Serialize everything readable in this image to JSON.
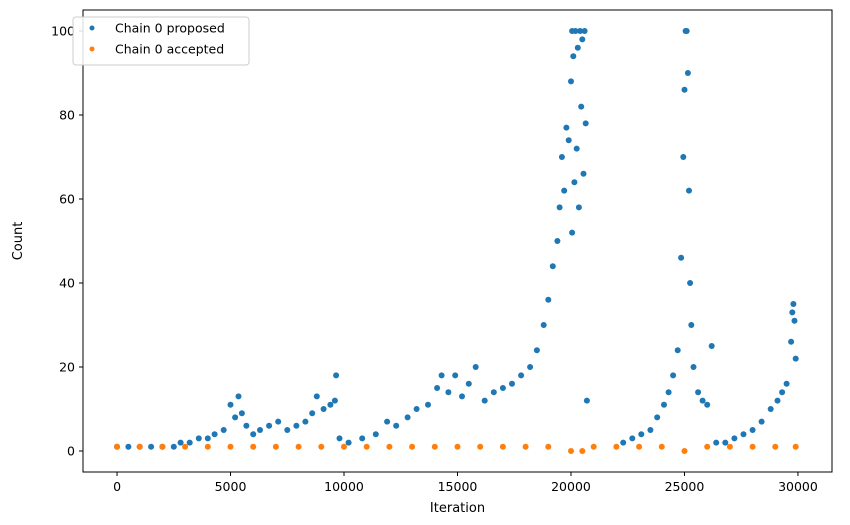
{
  "chart_data": {
    "type": "scatter",
    "xlabel": "Iteration",
    "ylabel": "Count",
    "xlim": [
      -1500,
      31500
    ],
    "ylim": [
      -5,
      105
    ],
    "xticks": [
      0,
      5000,
      10000,
      15000,
      20000,
      25000,
      30000
    ],
    "yticks": [
      0,
      20,
      40,
      60,
      80,
      100
    ],
    "grid": false,
    "legend": "top-left",
    "series": [
      {
        "name": "Chain 0 proposed",
        "color": "#1f77b4",
        "points": [
          [
            0,
            1
          ],
          [
            500,
            1
          ],
          [
            1000,
            1
          ],
          [
            1500,
            1
          ],
          [
            2000,
            1
          ],
          [
            2500,
            1
          ],
          [
            2800,
            2
          ],
          [
            3200,
            2
          ],
          [
            3600,
            3
          ],
          [
            4000,
            3
          ],
          [
            4300,
            4
          ],
          [
            4700,
            5
          ],
          [
            5000,
            11
          ],
          [
            5200,
            8
          ],
          [
            5350,
            13
          ],
          [
            5500,
            9
          ],
          [
            5700,
            6
          ],
          [
            6000,
            4
          ],
          [
            6300,
            5
          ],
          [
            6700,
            6
          ],
          [
            7100,
            7
          ],
          [
            7500,
            5
          ],
          [
            7900,
            6
          ],
          [
            8300,
            7
          ],
          [
            8600,
            9
          ],
          [
            8800,
            13
          ],
          [
            9100,
            10
          ],
          [
            9400,
            11
          ],
          [
            9600,
            12
          ],
          [
            9650,
            18
          ],
          [
            9800,
            3
          ],
          [
            10200,
            2
          ],
          [
            10800,
            3
          ],
          [
            11400,
            4
          ],
          [
            11900,
            7
          ],
          [
            12300,
            6
          ],
          [
            12800,
            8
          ],
          [
            13200,
            10
          ],
          [
            13700,
            11
          ],
          [
            14100,
            15
          ],
          [
            14300,
            18
          ],
          [
            14600,
            14
          ],
          [
            14900,
            18
          ],
          [
            15200,
            13
          ],
          [
            15500,
            16
          ],
          [
            15800,
            20
          ],
          [
            16200,
            12
          ],
          [
            16600,
            14
          ],
          [
            17000,
            15
          ],
          [
            17400,
            16
          ],
          [
            17800,
            18
          ],
          [
            18200,
            20
          ],
          [
            18500,
            24
          ],
          [
            18800,
            30
          ],
          [
            19000,
            36
          ],
          [
            19200,
            44
          ],
          [
            19400,
            50
          ],
          [
            19500,
            58
          ],
          [
            19600,
            70
          ],
          [
            19700,
            62
          ],
          [
            19800,
            77
          ],
          [
            19900,
            74
          ],
          [
            20000,
            88
          ],
          [
            20050,
            100
          ],
          [
            20100,
            94
          ],
          [
            20200,
            100
          ],
          [
            20300,
            96
          ],
          [
            20400,
            100
          ],
          [
            20500,
            98
          ],
          [
            20600,
            100
          ],
          [
            20700,
            12
          ],
          [
            20650,
            78
          ],
          [
            20550,
            66
          ],
          [
            20450,
            82
          ],
          [
            20350,
            58
          ],
          [
            20250,
            72
          ],
          [
            20150,
            64
          ],
          [
            20050,
            52
          ],
          [
            22300,
            2
          ],
          [
            22700,
            3
          ],
          [
            23100,
            4
          ],
          [
            23500,
            5
          ],
          [
            23800,
            8
          ],
          [
            24100,
            11
          ],
          [
            24300,
            14
          ],
          [
            24500,
            18
          ],
          [
            24700,
            24
          ],
          [
            24850,
            46
          ],
          [
            24950,
            70
          ],
          [
            25000,
            86
          ],
          [
            25050,
            100
          ],
          [
            25100,
            100
          ],
          [
            25150,
            90
          ],
          [
            25200,
            62
          ],
          [
            25250,
            40
          ],
          [
            25300,
            30
          ],
          [
            25400,
            20
          ],
          [
            25600,
            14
          ],
          [
            25800,
            12
          ],
          [
            26000,
            11
          ],
          [
            26200,
            25
          ],
          [
            26400,
            2
          ],
          [
            26800,
            2
          ],
          [
            27200,
            3
          ],
          [
            27600,
            4
          ],
          [
            28000,
            5
          ],
          [
            28400,
            7
          ],
          [
            28800,
            10
          ],
          [
            29100,
            12
          ],
          [
            29300,
            14
          ],
          [
            29500,
            16
          ],
          [
            29700,
            26
          ],
          [
            29750,
            33
          ],
          [
            29800,
            35
          ],
          [
            29850,
            31
          ],
          [
            29900,
            22
          ]
        ]
      },
      {
        "name": "Chain 0 accepted",
        "color": "#ff7f0e",
        "points": [
          [
            0,
            1
          ],
          [
            1000,
            1
          ],
          [
            2000,
            1
          ],
          [
            3000,
            1
          ],
          [
            4000,
            1
          ],
          [
            5000,
            1
          ],
          [
            6000,
            1
          ],
          [
            7000,
            1
          ],
          [
            8000,
            1
          ],
          [
            9000,
            1
          ],
          [
            10000,
            1
          ],
          [
            11000,
            1
          ],
          [
            12000,
            1
          ],
          [
            13000,
            1
          ],
          [
            14000,
            1
          ],
          [
            15000,
            1
          ],
          [
            16000,
            1
          ],
          [
            17000,
            1
          ],
          [
            18000,
            1
          ],
          [
            19000,
            1
          ],
          [
            20000,
            0
          ],
          [
            20500,
            0
          ],
          [
            21000,
            1
          ],
          [
            22000,
            1
          ],
          [
            23000,
            1
          ],
          [
            24000,
            1
          ],
          [
            25000,
            0
          ],
          [
            26000,
            1
          ],
          [
            27000,
            1
          ],
          [
            28000,
            1
          ],
          [
            29000,
            1
          ],
          [
            29900,
            1
          ]
        ]
      }
    ]
  }
}
